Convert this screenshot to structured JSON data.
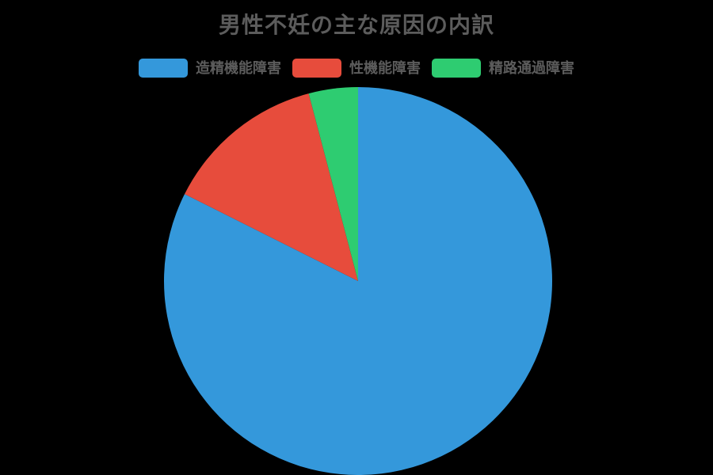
{
  "chart_data": {
    "type": "pie",
    "title": "男性不妊の主な原因の内訳",
    "labels": [
      "造精機能障害",
      "性機能障害",
      "精路通過障害"
    ],
    "values": [
      82.4,
      13.5,
      4.1
    ],
    "colors": [
      "#3498db",
      "#e74c3c",
      "#2ecc71"
    ],
    "legend_position": "top",
    "start_angle_deg": -90,
    "direction": "clockwise",
    "background_color": "#000000",
    "data_labels_shown": false
  }
}
